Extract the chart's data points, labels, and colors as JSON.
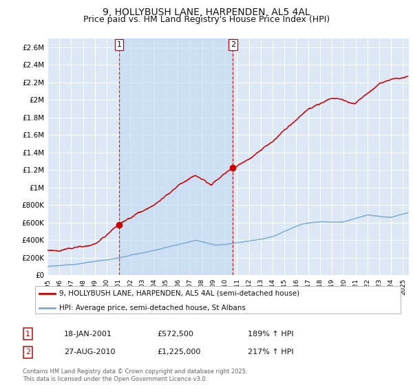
{
  "title": "9, HOLLYBUSH LANE, HARPENDEN, AL5 4AL",
  "subtitle": "Price paid vs. HM Land Registry's House Price Index (HPI)",
  "title_fontsize": 10,
  "subtitle_fontsize": 9,
  "bg_color": "#ffffff",
  "plot_bg_color": "#dce8f5",
  "grid_color": "#ffffff",
  "red_line_color": "#cc0000",
  "blue_line_color": "#7aacd6",
  "sale1_date_num": 2001.05,
  "sale1_label": "1",
  "sale1_value": 572500,
  "sale1_date_str": "18-JAN-2001",
  "sale1_hpi_pct": "189% ↑ HPI",
  "sale2_date_num": 2010.65,
  "sale2_label": "2",
  "sale2_value": 1225000,
  "sale2_date_str": "27-AUG-2010",
  "sale2_hpi_pct": "217% ↑ HPI",
  "shade_color": "#c0d8f0",
  "shade_alpha": 0.6,
  "ylim": [
    0,
    2700000
  ],
  "xlim_start": 1995.0,
  "xlim_end": 2025.5,
  "legend_label_red": "9, HOLLYBUSH LANE, HARPENDEN, AL5 4AL (semi-detached house)",
  "legend_label_blue": "HPI: Average price, semi-detached house, St Albans",
  "footnote": "Contains HM Land Registry data © Crown copyright and database right 2025.\nThis data is licensed under the Open Government Licence v3.0."
}
